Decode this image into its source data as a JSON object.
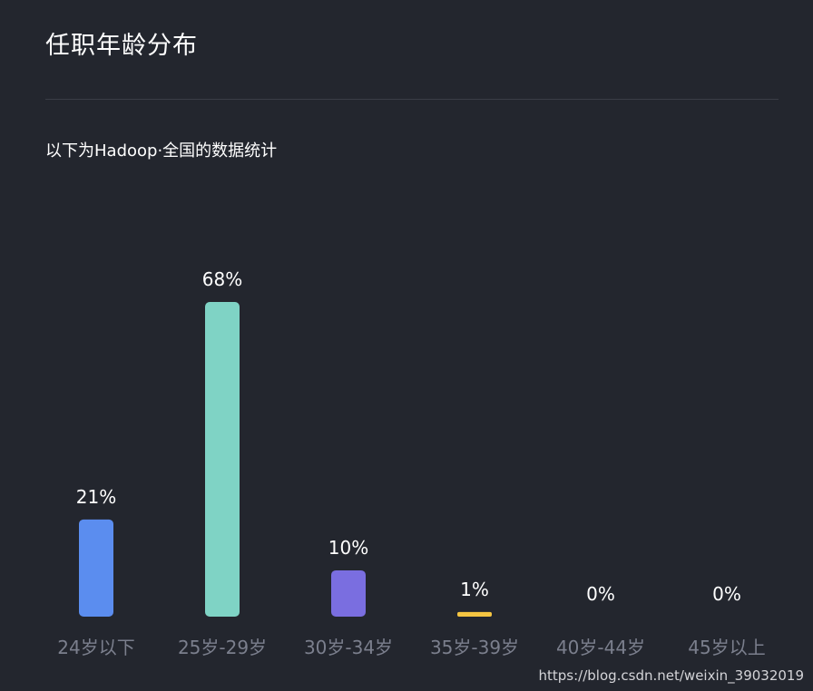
{
  "header": {
    "title": "任职年龄分布",
    "subtitle": "以下为Hadoop·全国的数据统计"
  },
  "watermark": "https://blog.csdn.net/weixin_39032019",
  "colors": {
    "background": "#23262e",
    "text": "#ffffff",
    "axis_label": "#7b7f8d"
  },
  "chart_data": {
    "type": "bar",
    "categories": [
      "24岁以下",
      "25岁-29岁",
      "30岁-34岁",
      "35岁-39岁",
      "40岁-44岁",
      "45岁以上"
    ],
    "values": [
      21,
      68,
      10,
      1,
      0,
      0
    ],
    "labels": [
      "21%",
      "68%",
      "10%",
      "1%",
      "0%",
      "0%"
    ],
    "colors": [
      "#5b8def",
      "#7fd3c5",
      "#7a6ee0",
      "#f5c542",
      "#9aa0b0",
      "#9aa0b0"
    ],
    "title": "",
    "xlabel": "",
    "ylabel": "",
    "ylim": [
      0,
      68
    ],
    "grid": false,
    "legend": "none"
  }
}
